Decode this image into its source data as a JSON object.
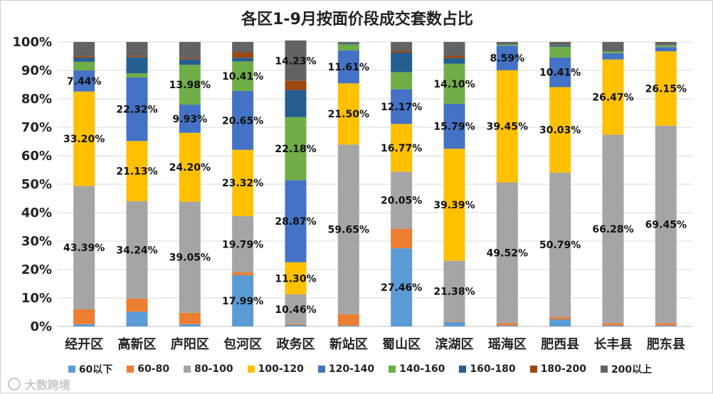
{
  "chart_data": {
    "type": "bar",
    "stacked": true,
    "percent": true,
    "title": "各区1-9月按面价段成交套数占比",
    "xlabel": "",
    "ylabel": "",
    "ylim": [
      0,
      100
    ],
    "y_ticks": [
      "0%",
      "10%",
      "20%",
      "30%",
      "40%",
      "50%",
      "60%",
      "70%",
      "80%",
      "90%",
      "100%"
    ],
    "grid": true,
    "legend_position": "bottom",
    "categories": [
      "经开区",
      "高新区",
      "庐阳区",
      "包河区",
      "政务区",
      "新站区",
      "蜀山区",
      "滨湖区",
      "瑶海区",
      "肥西县",
      "长丰县",
      "肥东县"
    ],
    "series": [
      {
        "name": "60以下",
        "color": "#5b9bd5",
        "values": [
          0.8,
          5.2,
          0.8,
          17.99,
          0.5,
          0.3,
          27.46,
          1.5,
          0.3,
          2.5,
          0.3,
          0.3
        ]
      },
      {
        "name": "60-80",
        "color": "#ed7d31",
        "values": [
          5.2,
          4.6,
          4.0,
          1.0,
          0.3,
          4.0,
          6.9,
          0.2,
          0.8,
          0.8,
          0.8,
          0.8
        ]
      },
      {
        "name": "80-100",
        "color": "#a5a5a5",
        "values": [
          43.39,
          34.24,
          39.05,
          19.79,
          10.46,
          59.65,
          20.05,
          21.38,
          49.52,
          50.79,
          66.28,
          69.45
        ]
      },
      {
        "name": "100-120",
        "color": "#ffc000",
        "values": [
          33.2,
          21.13,
          24.2,
          23.32,
          11.3,
          21.5,
          16.77,
          39.39,
          39.45,
          30.03,
          26.47,
          26.15
        ]
      },
      {
        "name": "120-140",
        "color": "#4472c4",
        "values": [
          7.44,
          22.32,
          9.93,
          20.65,
          28.87,
          11.61,
          12.17,
          15.79,
          8.59,
          10.41,
          2.2,
          1.5
        ]
      },
      {
        "name": "140-160",
        "color": "#70ad47",
        "values": [
          3.0,
          1.5,
          13.98,
          10.41,
          22.18,
          2.1,
          6.0,
          14.1,
          0.3,
          3.8,
          0.6,
          0.6
        ]
      },
      {
        "name": "160-180",
        "color": "#255e91",
        "values": [
          1.5,
          5.7,
          2.0,
          1.3,
          9.5,
          0.4,
          6.9,
          2.0,
          0.1,
          0.5,
          0.1,
          0.1
        ]
      },
      {
        "name": "180-200",
        "color": "#9e480e",
        "values": [
          0.5,
          0.5,
          0.5,
          1.8,
          3.2,
          0.1,
          0.5,
          0.8,
          0.0,
          0.1,
          0.0,
          0.0
        ]
      },
      {
        "name": "200以上",
        "color": "#636363",
        "values": [
          4.97,
          4.8,
          5.54,
          3.74,
          14.23,
          0.34,
          3.25,
          4.84,
          0.94,
          1.07,
          3.25,
          1.1
        ]
      }
    ],
    "data_labels": [
      {
        "category": "经开区",
        "series": "80-100",
        "text": "43.39%"
      },
      {
        "category": "经开区",
        "series": "100-120",
        "text": "33.20%"
      },
      {
        "category": "经开区",
        "series": "120-140",
        "text": "7.44%"
      },
      {
        "category": "高新区",
        "series": "80-100",
        "text": "34.24%"
      },
      {
        "category": "高新区",
        "series": "100-120",
        "text": "21.13%"
      },
      {
        "category": "高新区",
        "series": "120-140",
        "text": "22.32%"
      },
      {
        "category": "庐阳区",
        "series": "80-100",
        "text": "39.05%"
      },
      {
        "category": "庐阳区",
        "series": "100-120",
        "text": "24.20%"
      },
      {
        "category": "庐阳区",
        "series": "120-140",
        "text": "9.93%"
      },
      {
        "category": "庐阳区",
        "series": "140-160",
        "text": "13.98%"
      },
      {
        "category": "包河区",
        "series": "60以下",
        "text": "17.99%"
      },
      {
        "category": "包河区",
        "series": "80-100",
        "text": "19.79%"
      },
      {
        "category": "包河区",
        "series": "100-120",
        "text": "23.32%"
      },
      {
        "category": "包河区",
        "series": "120-140",
        "text": "20.65%"
      },
      {
        "category": "包河区",
        "series": "140-160",
        "text": "10.41%"
      },
      {
        "category": "政务区",
        "series": "80-100",
        "text": "10.46%"
      },
      {
        "category": "政务区",
        "series": "100-120",
        "text": "11.30%"
      },
      {
        "category": "政务区",
        "series": "120-140",
        "text": "28.87%"
      },
      {
        "category": "政务区",
        "series": "140-160",
        "text": "22.18%"
      },
      {
        "category": "政务区",
        "series": "200以上",
        "text": "14.23%"
      },
      {
        "category": "新站区",
        "series": "80-100",
        "text": "59.65%"
      },
      {
        "category": "新站区",
        "series": "100-120",
        "text": "21.50%"
      },
      {
        "category": "新站区",
        "series": "120-140",
        "text": "11.61%"
      },
      {
        "category": "蜀山区",
        "series": "60以下",
        "text": "27.46%"
      },
      {
        "category": "蜀山区",
        "series": "80-100",
        "text": "20.05%"
      },
      {
        "category": "蜀山区",
        "series": "100-120",
        "text": "16.77%"
      },
      {
        "category": "蜀山区",
        "series": "120-140",
        "text": "12.17%"
      },
      {
        "category": "滨湖区",
        "series": "80-100",
        "text": "21.38%"
      },
      {
        "category": "滨湖区",
        "series": "100-120",
        "text": "39.39%"
      },
      {
        "category": "滨湖区",
        "series": "120-140",
        "text": "15.79%"
      },
      {
        "category": "滨湖区",
        "series": "140-160",
        "text": "14.10%"
      },
      {
        "category": "瑶海区",
        "series": "80-100",
        "text": "49.52%"
      },
      {
        "category": "瑶海区",
        "series": "100-120",
        "text": "39.45%"
      },
      {
        "category": "瑶海区",
        "series": "120-140",
        "text": "8.59%"
      },
      {
        "category": "肥西县",
        "series": "80-100",
        "text": "50.79%"
      },
      {
        "category": "肥西县",
        "series": "100-120",
        "text": "30.03%"
      },
      {
        "category": "肥西县",
        "series": "120-140",
        "text": "10.41%"
      },
      {
        "category": "长丰县",
        "series": "80-100",
        "text": "66.28%"
      },
      {
        "category": "长丰县",
        "series": "100-120",
        "text": "26.47%"
      },
      {
        "category": "肥东县",
        "series": "80-100",
        "text": "69.45%"
      },
      {
        "category": "肥东县",
        "series": "100-120",
        "text": "26.15%"
      }
    ]
  },
  "watermark": {
    "text": "大数跨境"
  }
}
